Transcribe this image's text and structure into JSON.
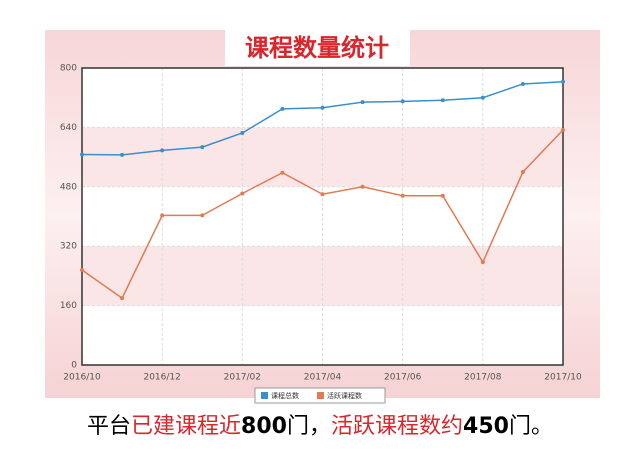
{
  "chart_data": {
    "type": "line",
    "title": "课程数量统计",
    "categories": [
      "2016/10",
      null,
      "2016/12",
      null,
      "2017/02",
      null,
      "2017/04",
      null,
      "2017/06",
      null,
      "2017/08",
      null,
      "2017/10"
    ],
    "series": [
      {
        "name": "课程总数",
        "color": "#3b8fca",
        "values": [
          567,
          566,
          578,
          587,
          625,
          690,
          693,
          708,
          710,
          713,
          720,
          757,
          763
        ]
      },
      {
        "name": "活跃课程数",
        "color": "#e07b52",
        "values": [
          256,
          180,
          403,
          403,
          462,
          518,
          460,
          480,
          456,
          456,
          277,
          520,
          633
        ]
      }
    ],
    "ylim": [
      0,
      800
    ],
    "yticks": [
      0,
      160,
      320,
      480,
      640,
      800
    ],
    "grid": true,
    "legend": "bottom"
  },
  "caption": {
    "segments": [
      {
        "text": "平台",
        "color": "#000000",
        "bold": false
      },
      {
        "text": "已建课程近",
        "color": "#d9262c",
        "bold": false
      },
      {
        "text": "800",
        "color": "#000000",
        "bold": true
      },
      {
        "text": "门，",
        "color": "#000000",
        "bold": false
      },
      {
        "text": "活跃课程数约",
        "color": "#d9262c",
        "bold": false
      },
      {
        "text": "450",
        "color": "#000000",
        "bold": true
      },
      {
        "text": "门。",
        "color": "#000000",
        "bold": false
      }
    ]
  }
}
